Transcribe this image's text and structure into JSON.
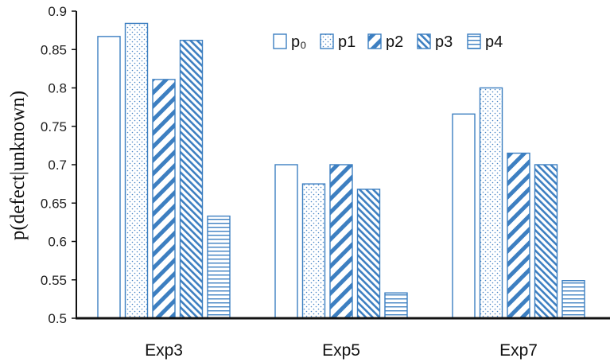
{
  "chart_data": {
    "type": "bar",
    "title": "",
    "xlabel": "",
    "ylabel": "p(defect|unknown)",
    "ylim": [
      0.5,
      0.9
    ],
    "yticks": [
      "0.9",
      "0.85",
      "0.8",
      "0.75",
      "0.7",
      "0.65",
      "0.6",
      "0.55",
      "0.5"
    ],
    "grid": false,
    "legend_position": "top-right",
    "categories": [
      "Exp3",
      "Exp5",
      "Exp7"
    ],
    "series": [
      {
        "name": "p₀",
        "pattern": "empty",
        "values": [
          0.867,
          0.7,
          0.766
        ]
      },
      {
        "name": "p1",
        "pattern": "dots",
        "values": [
          0.884,
          0.675,
          0.8
        ]
      },
      {
        "name": "p2",
        "pattern": "wide-diagonal",
        "values": [
          0.811,
          0.7,
          0.715
        ]
      },
      {
        "name": "p3",
        "pattern": "narrow-diagonal",
        "values": [
          0.862,
          0.668,
          0.7
        ]
      },
      {
        "name": "p4",
        "pattern": "horizontal",
        "values": [
          0.633,
          0.533,
          0.549
        ]
      }
    ],
    "colors": {
      "bar_stroke": "#3d7fc1",
      "axis": "#111111"
    }
  }
}
